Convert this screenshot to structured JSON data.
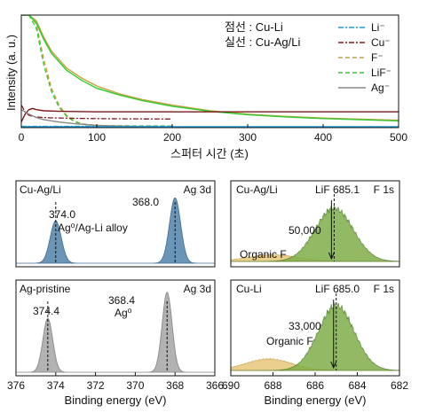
{
  "chart_data": [
    {
      "type": "line",
      "xlabel": "스퍼터 시간 (초)",
      "ylabel": "Intensity (a. u.)",
      "xlim": [
        0,
        500
      ],
      "xticks": [
        0,
        100,
        200,
        300,
        400,
        500
      ],
      "grid": false,
      "legend_placement": "top-right",
      "style_note_dashed": "점선 : Cu-Li",
      "style_note_solid": "실선 : Cu-Ag/Li",
      "legend": [
        {
          "label": "Li⁻",
          "color": "#1f9ad6",
          "dash": "dashdot"
        },
        {
          "label": "Cu⁻",
          "color": "#7a1a1a",
          "dash": "dashdot"
        },
        {
          "label": "F⁻",
          "color": "#c8a040",
          "dash": "dashed"
        },
        {
          "label": "LiF⁻",
          "color": "#2ecc2e",
          "dash": "dashed"
        },
        {
          "label": "Ag⁻",
          "color": "#888888",
          "dash": "solid"
        }
      ],
      "series": [
        {
          "name": "F⁻",
          "sample": "Cu-Li",
          "color": "#c8a040",
          "dash": "dashed",
          "x": [
            0,
            10,
            20,
            30,
            40,
            50,
            60,
            70,
            80,
            100,
            120,
            150,
            200
          ],
          "y": [
            1.0,
            1.0,
            0.92,
            0.6,
            0.35,
            0.2,
            0.11,
            0.06,
            0.035,
            0.02,
            0.018,
            0.016,
            0.015
          ]
        },
        {
          "name": "LiF⁻",
          "sample": "Cu-Li",
          "color": "#2ecc2e",
          "dash": "dashed",
          "x": [
            0,
            10,
            20,
            30,
            40,
            50,
            60,
            70,
            80,
            100,
            120,
            150,
            200
          ],
          "y": [
            1.0,
            1.0,
            0.88,
            0.55,
            0.32,
            0.18,
            0.1,
            0.055,
            0.03,
            0.018,
            0.016,
            0.015,
            0.014
          ]
        },
        {
          "name": "Cu⁻",
          "sample": "Cu-Li",
          "color": "#7a1a1a",
          "dash": "dashdot",
          "x": [
            0,
            5,
            10,
            15,
            20,
            30,
            40,
            60,
            80,
            100,
            140,
            200
          ],
          "y": [
            0.2,
            0.14,
            0.11,
            0.1,
            0.095,
            0.09,
            0.087,
            0.084,
            0.082,
            0.08,
            0.078,
            0.076
          ]
        },
        {
          "name": "Li⁻",
          "sample": "Cu-Li",
          "color": "#1f9ad6",
          "dash": "dashdot",
          "x": [
            0,
            20,
            50,
            100,
            150,
            200
          ],
          "y": [
            0.012,
            0.012,
            0.012,
            0.012,
            0.012,
            0.012
          ]
        },
        {
          "name": "F⁻",
          "sample": "Cu-Ag/Li",
          "color": "#c8a040",
          "dash": "solid",
          "x": [
            0,
            10,
            20,
            30,
            40,
            60,
            80,
            100,
            130,
            160,
            200,
            250,
            300,
            350,
            400,
            450,
            500
          ],
          "y": [
            1.0,
            1.0,
            0.95,
            0.8,
            0.68,
            0.53,
            0.44,
            0.37,
            0.3,
            0.25,
            0.2,
            0.15,
            0.12,
            0.1,
            0.085,
            0.075,
            0.065
          ]
        },
        {
          "name": "LiF⁻",
          "sample": "Cu-Ag/Li",
          "color": "#2ecc2e",
          "dash": "solid",
          "x": [
            0,
            10,
            20,
            30,
            40,
            60,
            80,
            100,
            130,
            160,
            200,
            250,
            300,
            350,
            400,
            450,
            500
          ],
          "y": [
            1.0,
            1.0,
            0.93,
            0.78,
            0.66,
            0.51,
            0.42,
            0.35,
            0.29,
            0.24,
            0.19,
            0.145,
            0.115,
            0.095,
            0.08,
            0.07,
            0.06
          ]
        },
        {
          "name": "Cu⁻",
          "sample": "Cu-Ag/Li",
          "color": "#7a1a1a",
          "dash": "solid",
          "x": [
            0,
            5,
            10,
            15,
            20,
            30,
            50,
            100,
            200,
            300,
            400,
            500
          ],
          "y": [
            0.05,
            0.12,
            0.16,
            0.17,
            0.16,
            0.15,
            0.145,
            0.14,
            0.14,
            0.14,
            0.14,
            0.14
          ]
        },
        {
          "name": "Ag⁻",
          "sample": "Cu-Ag/Li",
          "color": "#888888",
          "dash": "solid",
          "x": [
            0,
            10,
            20,
            30,
            50,
            70,
            100,
            150,
            200
          ],
          "y": [
            0.16,
            0.12,
            0.09,
            0.07,
            0.05,
            0.035,
            0.02,
            0.01,
            0.005
          ]
        },
        {
          "name": "Li⁻",
          "sample": "Cu-Ag/Li",
          "color": "#1f9ad6",
          "dash": "solid",
          "x": [
            0,
            50,
            100,
            200,
            300,
            400,
            500
          ],
          "y": [
            0.008,
            0.008,
            0.008,
            0.008,
            0.008,
            0.008,
            0.008
          ]
        }
      ]
    },
    {
      "type": "line",
      "title_left": "Cu-Ag/Li",
      "title_right": "Ag 3d",
      "xlim": [
        376,
        366
      ],
      "fill": "#5a8ab0",
      "peaks": [
        {
          "center": 374.0,
          "label": "374.0",
          "annotation": "Ag⁰/Ag-Li alloy",
          "height": 0.55,
          "width": 0.28
        },
        {
          "center": 368.0,
          "label": "368.0",
          "height": 0.85,
          "width": 0.28
        }
      ]
    },
    {
      "type": "line",
      "title_left": "Ag-pristine",
      "title_right": "Ag 3d",
      "xlabel": "Binding energy (eV)",
      "xlim": [
        376,
        366
      ],
      "xticks": [
        376,
        374,
        372,
        370,
        368,
        366
      ],
      "fill": "#aaaaaa",
      "peaks": [
        {
          "center": 374.4,
          "label": "374.4",
          "height": 0.62,
          "width": 0.25
        },
        {
          "center": 368.4,
          "label": "368.4",
          "annotation": "Ag⁰",
          "height": 0.92,
          "width": 0.25
        }
      ]
    },
    {
      "type": "area",
      "title_left": "Cu-Ag/Li",
      "title_right": "F 1s",
      "xlim": [
        690,
        682
      ],
      "components": [
        {
          "name": "LiF",
          "center": 685.1,
          "label": "LiF 685.1",
          "color": "#7fae4a",
          "height": 0.8,
          "width": 0.9
        },
        {
          "name": "Organic F",
          "center": 688.0,
          "label": "Organic F",
          "color": "#e8c77a",
          "height": 0.1,
          "width": 1.2
        }
      ],
      "count_label": "50,000"
    },
    {
      "type": "area",
      "title_left": "Cu-Li",
      "title_right": "F 1s",
      "xlabel": "Binding energy (eV)",
      "xlim": [
        690,
        682
      ],
      "xticks": [
        690,
        688,
        686,
        684,
        682
      ],
      "components": [
        {
          "name": "LiF",
          "center": 685.0,
          "label": "LiF 685.0",
          "color": "#7fae4a",
          "height": 0.85,
          "width": 0.85
        },
        {
          "name": "Organic F",
          "center": 688.2,
          "label": "Organic F",
          "color": "#e8c77a",
          "height": 0.15,
          "width": 1.1
        }
      ],
      "count_label": "33,000"
    }
  ]
}
